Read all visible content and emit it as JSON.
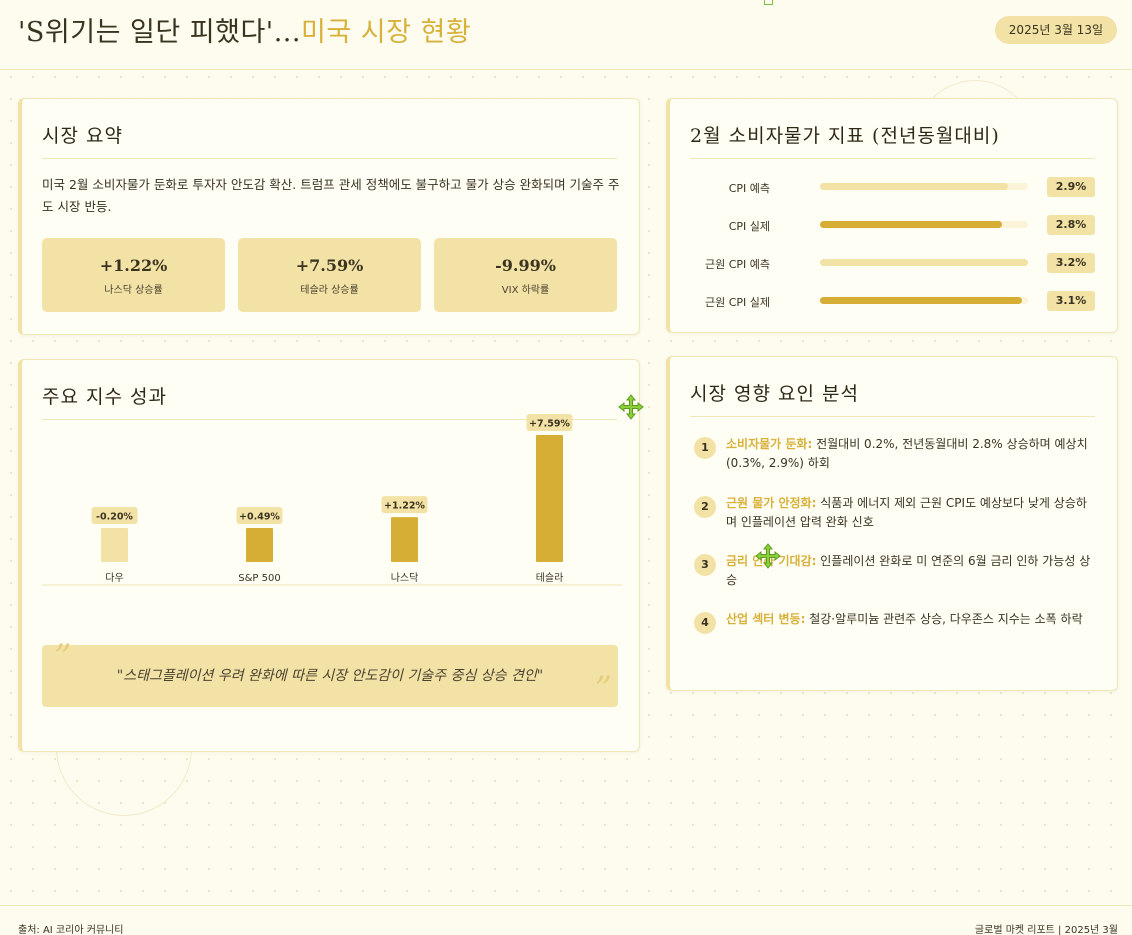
{
  "header": {
    "title_main": "'S위기는 일단 피했다'...",
    "title_accent": "미국 시장 현황",
    "date": "2025년 3월 13일"
  },
  "summary": {
    "title": "시장 요약",
    "text": "미국 2월 소비자물가 둔화로 투자자 안도감 확산. 트럼프 관세 정책에도 불구하고 물가 상승 완화되며 기술주 주도 시장 반등.",
    "stats": [
      {
        "value": "+1.22%",
        "label": "나스닥 상승률"
      },
      {
        "value": "+7.59%",
        "label": "테슬라 상승률"
      },
      {
        "value": "-9.99%",
        "label": "VIX 하락률"
      }
    ]
  },
  "cpi": {
    "title": "2월 소비자물가 지표 (전년동월대비)",
    "rows": [
      {
        "label": "CPI 예측",
        "value": "2.9%",
        "fraction": 0.906,
        "color": "#f3e2a6"
      },
      {
        "label": "CPI 실제",
        "value": "2.8%",
        "fraction": 0.875,
        "color": "#d6ae36"
      },
      {
        "label": "근원 CPI 예측",
        "value": "3.2%",
        "fraction": 1.0,
        "color": "#f3e2a6"
      },
      {
        "label": "근원 CPI 실제",
        "value": "3.1%",
        "fraction": 0.969,
        "color": "#d6ae36"
      }
    ]
  },
  "indices": {
    "title": "주요 지수 성과",
    "quote": "\"스태그플레이션 우려 완화에 따른 시장 안도감이 기술주 중심 상승 견인\"",
    "quote_open": "”",
    "quote_close": "”"
  },
  "chart_data": {
    "type": "bar",
    "categories": [
      "다우",
      "S&P 500",
      "나스닥",
      "테슬라"
    ],
    "values": [
      -0.2,
      0.49,
      1.22,
      7.59
    ],
    "value_labels": [
      "-0.20%",
      "+0.49%",
      "+1.22%",
      "+7.59%"
    ],
    "bar_colors": [
      "#f3e2a6",
      "#d6ae36",
      "#d6ae36",
      "#d6ae36"
    ]
  },
  "factors": {
    "title": "시장 영향 요인 분석",
    "items": [
      {
        "num": "1",
        "key": "소비자물가 둔화:",
        "text": " 전월대비 0.2%, 전년동월대비 2.8% 상승하며 예상치(0.3%, 2.9%) 하회"
      },
      {
        "num": "2",
        "key": "근원 물가 안정화:",
        "text": " 식품과 에너지 제외 근원 CPI도 예상보다 낮게 상승하며 인플레이션 압력 완화 신호"
      },
      {
        "num": "3",
        "key": "금리 인하 기대감:",
        "text": " 인플레이션 완화로 미 연준의 6월 금리 인하 가능성 상승"
      },
      {
        "num": "4",
        "key": "산업 섹터 변동:",
        "text": " 철강·알루미늄 관련주 상승, 다우존스 지수는 소폭 하락"
      }
    ]
  },
  "footer": {
    "source": "출처: AI 코리아 커뮤니티",
    "report": "글로벌 마켓 리포트 | 2025년 3월"
  }
}
